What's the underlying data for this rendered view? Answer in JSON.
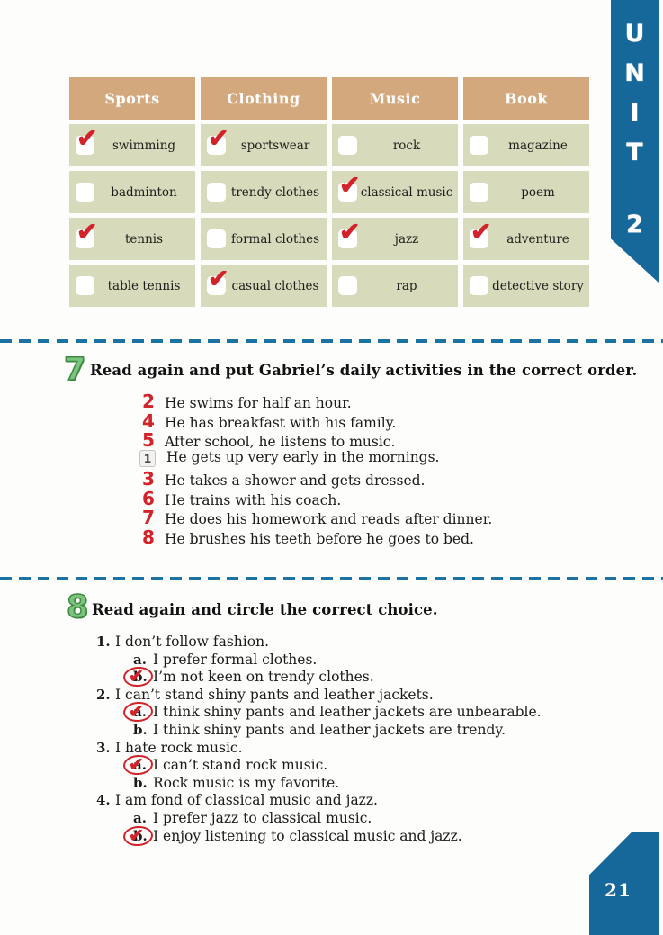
{
  "page": {
    "number": "21"
  },
  "unit_ribbon": {
    "letters": [
      "U",
      "N",
      "I",
      "T",
      "2"
    ],
    "color": "#17689a"
  },
  "icons": {
    "check": "✔"
  },
  "colors": {
    "ribbon_blue": "#17689a",
    "divider_blue": "#1b73a4",
    "header_tan": "#d2a87c",
    "cell_green": "#d7dabb",
    "mark_red": "#d2232a",
    "exercise_green": "#7cc47e"
  },
  "table": {
    "columns": [
      {
        "header": "Sports",
        "items": [
          {
            "label": "swimming",
            "checked": true
          },
          {
            "label": "badminton",
            "checked": false
          },
          {
            "label": "tennis",
            "checked": true
          },
          {
            "label": "table tennis",
            "checked": false
          }
        ]
      },
      {
        "header": "Clothing",
        "items": [
          {
            "label": "sportswear",
            "checked": true
          },
          {
            "label": "trendy clothes",
            "checked": false
          },
          {
            "label": "formal clothes",
            "checked": false
          },
          {
            "label": "casual clothes",
            "checked": true
          }
        ]
      },
      {
        "header": "Music",
        "items": [
          {
            "label": "rock",
            "checked": false
          },
          {
            "label": "classical music",
            "checked": true
          },
          {
            "label": "jazz",
            "checked": true
          },
          {
            "label": "rap",
            "checked": false
          }
        ]
      },
      {
        "header": "Book",
        "items": [
          {
            "label": "magazine",
            "checked": false
          },
          {
            "label": "poem",
            "checked": false
          },
          {
            "label": "adventure",
            "checked": true
          },
          {
            "label": "detective story",
            "checked": false
          }
        ]
      }
    ]
  },
  "exercise7": {
    "number": "7",
    "title": "Read again and put Gabriel’s daily activities in the correct order.",
    "items": [
      {
        "answer": "2",
        "given": false,
        "text": "He swims for half an hour."
      },
      {
        "answer": "4",
        "given": false,
        "text": "He has breakfast with his family."
      },
      {
        "answer": "5",
        "given": false,
        "text": "After school, he listens to music."
      },
      {
        "answer": "1",
        "given": true,
        "text": "He gets up very early in the mornings."
      },
      {
        "answer": "3",
        "given": false,
        "text": "He takes a shower and gets dressed."
      },
      {
        "answer": "6",
        "given": false,
        "text": "He trains with his coach."
      },
      {
        "answer": "7",
        "given": false,
        "text": "He does his homework and reads after dinner."
      },
      {
        "answer": "8",
        "given": false,
        "text": "He brushes his teeth before he goes to bed."
      }
    ]
  },
  "exercise8": {
    "number": "8",
    "title": "Read again and circle the correct choice.",
    "questions": [
      {
        "num": "1.",
        "text": "I don’t follow fashion.",
        "options": [
          {
            "letter": "a.",
            "text": "I prefer formal clothes.",
            "circled": false
          },
          {
            "letter": "b.",
            "text": "I’m not keen on trendy clothes.",
            "circled": true
          }
        ]
      },
      {
        "num": "2.",
        "text": "I can’t stand shiny pants and leather jackets.",
        "options": [
          {
            "letter": "a.",
            "text": "I think shiny pants and leather jackets are unbearable.",
            "circled": true
          },
          {
            "letter": "b.",
            "text": "I think shiny pants and leather jackets are trendy.",
            "circled": false
          }
        ]
      },
      {
        "num": "3.",
        "text": "I hate rock music.",
        "options": [
          {
            "letter": "a.",
            "text": "I can’t stand rock music.",
            "circled": true
          },
          {
            "letter": "b.",
            "text": "Rock music is my favorite.",
            "circled": false
          }
        ]
      },
      {
        "num": "4.",
        "text": "I am fond of classical music and jazz.",
        "options": [
          {
            "letter": "a.",
            "text": "I prefer jazz to classical music.",
            "circled": false
          },
          {
            "letter": "b.",
            "text": "I enjoy listening to classical music and jazz.",
            "circled": true
          }
        ]
      }
    ]
  }
}
